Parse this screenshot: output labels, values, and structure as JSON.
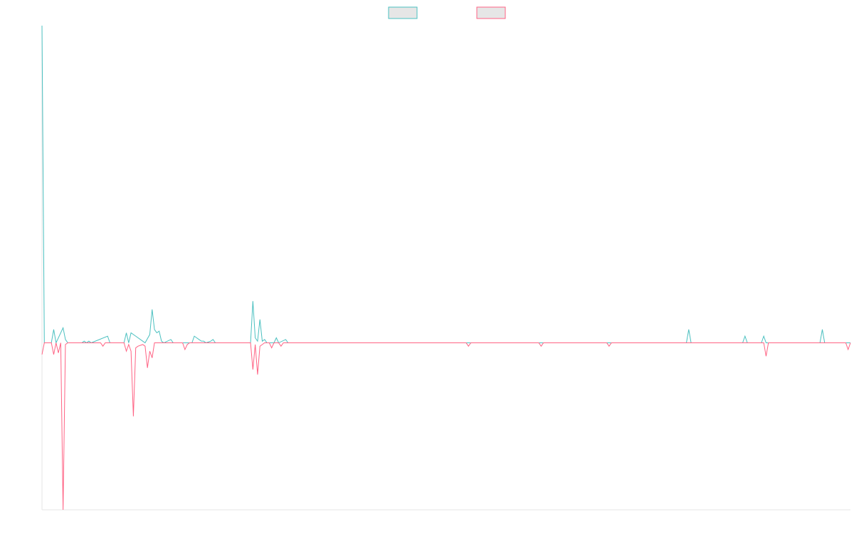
{
  "chart_data": {
    "type": "line",
    "title": "",
    "xlabel": "",
    "ylabel": "",
    "grid": false,
    "legend_position": "top-center",
    "x_range": [
      0,
      345
    ],
    "ylim": [
      -1.0,
      1.9
    ],
    "series": [
      {
        "color": "#4bc0c0",
        "fill": "#e6e6e6",
        "points": [
          [
            0,
            1.9
          ],
          [
            1,
            0
          ],
          [
            4,
            0
          ],
          [
            5,
            0.08
          ],
          [
            6,
            0
          ],
          [
            9,
            0.09
          ],
          [
            10,
            0.02
          ],
          [
            11,
            0
          ],
          [
            17,
            0
          ],
          [
            18,
            0.01
          ],
          [
            19,
            0
          ],
          [
            20,
            0.01
          ],
          [
            21,
            0
          ],
          [
            28,
            0.04
          ],
          [
            29,
            0
          ],
          [
            35,
            0
          ],
          [
            36,
            0.06
          ],
          [
            37,
            0
          ],
          [
            38,
            0.06
          ],
          [
            40,
            0.04
          ],
          [
            43,
            0.01
          ],
          [
            44,
            0
          ],
          [
            46,
            0.05
          ],
          [
            47,
            0.2
          ],
          [
            48,
            0.08
          ],
          [
            49,
            0.06
          ],
          [
            50,
            0.07
          ],
          [
            51,
            0.01
          ],
          [
            52,
            0
          ],
          [
            55,
            0.02
          ],
          [
            56,
            0
          ],
          [
            59,
            0
          ],
          [
            60,
            0
          ],
          [
            64,
            0
          ],
          [
            65,
            0.04
          ],
          [
            66,
            0.03
          ],
          [
            67,
            0.02
          ],
          [
            68,
            0.01
          ],
          [
            69,
            0.01
          ],
          [
            70,
            0
          ],
          [
            72,
            0.01
          ],
          [
            73,
            0.02
          ],
          [
            74,
            0
          ],
          [
            89,
            0
          ],
          [
            90,
            0.25
          ],
          [
            91,
            0.03
          ],
          [
            92,
            0.01
          ],
          [
            93,
            0.14
          ],
          [
            94,
            0.01
          ],
          [
            95,
            0.02
          ],
          [
            96,
            0
          ],
          [
            99,
            0
          ],
          [
            100,
            0.03
          ],
          [
            101,
            0
          ],
          [
            104,
            0.02
          ],
          [
            105,
            0
          ],
          [
            275,
            0
          ],
          [
            276,
            0.08
          ],
          [
            277,
            0
          ],
          [
            299,
            0
          ],
          [
            300,
            0.04
          ],
          [
            301,
            0
          ],
          [
            307,
            0
          ],
          [
            308,
            0.04
          ],
          [
            309,
            0
          ],
          [
            332,
            0
          ],
          [
            333,
            0.08
          ],
          [
            334,
            0
          ],
          [
            345,
            0
          ]
        ]
      },
      {
        "color": "#ff6384",
        "fill": "#e6e6e6",
        "points": [
          [
            0,
            -0.07
          ],
          [
            1,
            0
          ],
          [
            4,
            0
          ],
          [
            5,
            -0.07
          ],
          [
            6,
            0
          ],
          [
            7,
            -0.06
          ],
          [
            8,
            0
          ],
          [
            9,
            -1.0
          ],
          [
            10,
            -0.01
          ],
          [
            11,
            0
          ],
          [
            25,
            0
          ],
          [
            26,
            -0.02
          ],
          [
            27,
            0
          ],
          [
            35,
            0
          ],
          [
            36,
            -0.05
          ],
          [
            37,
            -0.01
          ],
          [
            38,
            -0.05
          ],
          [
            39,
            -0.44
          ],
          [
            40,
            -0.03
          ],
          [
            41,
            -0.02
          ],
          [
            43,
            -0.01
          ],
          [
            44,
            -0.02
          ],
          [
            45,
            -0.15
          ],
          [
            46,
            -0.05
          ],
          [
            47,
            -0.09
          ],
          [
            48,
            0
          ],
          [
            60,
            0
          ],
          [
            61,
            -0.04
          ],
          [
            62,
            -0.01
          ],
          [
            63,
            0
          ],
          [
            89,
            0
          ],
          [
            90,
            -0.16
          ],
          [
            91,
            -0.01
          ],
          [
            92,
            -0.19
          ],
          [
            93,
            -0.02
          ],
          [
            94,
            -0.01
          ],
          [
            95,
            0
          ],
          [
            97,
            0
          ],
          [
            98,
            -0.03
          ],
          [
            99,
            0
          ],
          [
            101,
            0
          ],
          [
            102,
            -0.02
          ],
          [
            103,
            0
          ],
          [
            181,
            0
          ],
          [
            182,
            -0.02
          ],
          [
            183,
            0
          ],
          [
            212,
            0
          ],
          [
            213,
            -0.02
          ],
          [
            214,
            0
          ],
          [
            241,
            0
          ],
          [
            242,
            -0.02
          ],
          [
            243,
            0
          ],
          [
            308,
            0
          ],
          [
            309,
            -0.08
          ],
          [
            310,
            0
          ],
          [
            343,
            0
          ],
          [
            344,
            -0.04
          ],
          [
            345,
            0
          ]
        ]
      }
    ]
  }
}
